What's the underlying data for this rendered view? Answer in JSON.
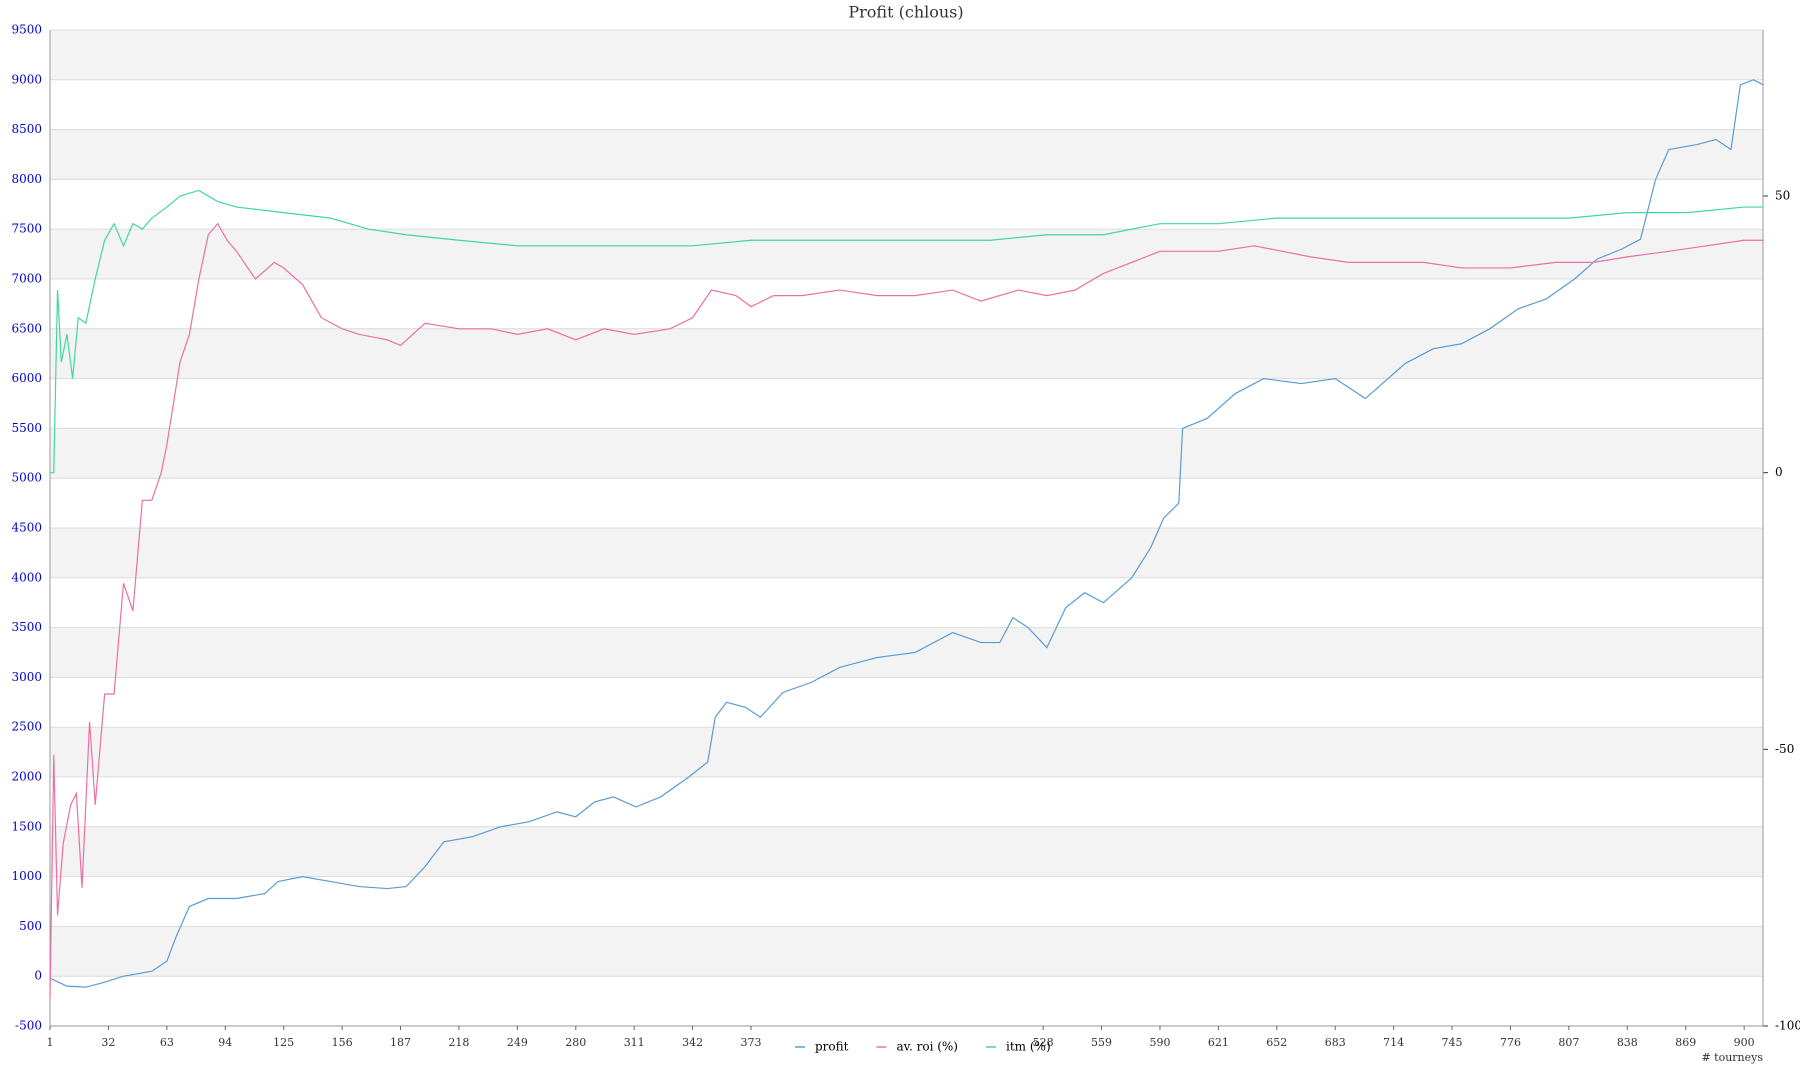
{
  "chart_data": {
    "type": "line",
    "title": "Profit  (chlous)",
    "x_label": "# tourneys",
    "xlim": [
      1,
      910
    ],
    "xticks": [
      1,
      32,
      63,
      94,
      125,
      156,
      187,
      218,
      249,
      280,
      311,
      342,
      373,
      528,
      559,
      590,
      621,
      652,
      683,
      714,
      745,
      776,
      807,
      838,
      869,
      900
    ],
    "ylim": [
      -500,
      9500
    ],
    "yticks": [
      -500,
      0,
      500,
      1000,
      1500,
      2000,
      2500,
      3000,
      3500,
      4000,
      4500,
      5000,
      5500,
      6000,
      6500,
      7000,
      7500,
      8000,
      8500,
      9000,
      9500
    ],
    "y2lim": [
      -100,
      80
    ],
    "y2ticks": [
      -100,
      -50,
      0,
      50
    ],
    "grid": true,
    "series": [
      {
        "name": "profit",
        "color": "#5b9bd5",
        "x": [
          1,
          10,
          20,
          30,
          40,
          55,
          63,
          68,
          75,
          85,
          100,
          115,
          122,
          135,
          150,
          165,
          180,
          190,
          200,
          210,
          225,
          240,
          255,
          270,
          280,
          290,
          300,
          312,
          325,
          340,
          350,
          354,
          360,
          370,
          378,
          390,
          405,
          420,
          440,
          460,
          480,
          495,
          505,
          512,
          520,
          530,
          540,
          550,
          560,
          575,
          585,
          592,
          600,
          602,
          615,
          630,
          645,
          665,
          683,
          699,
          720,
          735,
          750,
          765,
          780,
          795,
          810,
          822,
          835,
          845,
          853,
          860,
          875,
          885,
          893,
          898,
          905,
          910
        ],
        "values": [
          -20,
          -100,
          -110,
          -60,
          0,
          50,
          150,
          400,
          700,
          780,
          780,
          830,
          950,
          1000,
          950,
          900,
          880,
          900,
          1100,
          1350,
          1400,
          1500,
          1550,
          1650,
          1600,
          1750,
          1800,
          1700,
          1800,
          2000,
          2150,
          2600,
          2750,
          2700,
          2600,
          2850,
          2950,
          3100,
          3200,
          3250,
          3450,
          3350,
          3350,
          3600,
          3500,
          3300,
          3700,
          3850,
          3750,
          4000,
          4300,
          4600,
          4750,
          5500,
          5600,
          5850,
          6000,
          5950,
          6000,
          5800,
          6150,
          6300,
          6350,
          6500,
          6700,
          6800,
          7000,
          7200,
          7300,
          7400,
          8000,
          8300,
          8350,
          8400,
          8300,
          8950,
          9000,
          8950
        ]
      },
      {
        "name": "av. roi (%)",
        "color": "#ec6fa3",
        "axis": "y2",
        "x": [
          1,
          3,
          5,
          8,
          12,
          15,
          18,
          22,
          25,
          30,
          35,
          40,
          45,
          50,
          55,
          60,
          63,
          70,
          75,
          80,
          85,
          90,
          95,
          100,
          110,
          120,
          125,
          135,
          145,
          156,
          165,
          180,
          187,
          200,
          218,
          235,
          249,
          265,
          280,
          295,
          311,
          330,
          342,
          352,
          365,
          373,
          385,
          400,
          420,
          440,
          460,
          480,
          495,
          515,
          530,
          545,
          560,
          575,
          590,
          605,
          621,
          640,
          655,
          670,
          690,
          714,
          730,
          750,
          776,
          800,
          820,
          838,
          860,
          880,
          900,
          910
        ],
        "values": [
          -95,
          -51,
          -80,
          -67,
          -60,
          -58,
          -75,
          -45,
          -60,
          -40,
          -40,
          -20,
          -25,
          -5,
          -5,
          0,
          5,
          20,
          25,
          35,
          43,
          45,
          42,
          40,
          35,
          38,
          37,
          34,
          28,
          26,
          25,
          24,
          23,
          27,
          26,
          26,
          25,
          26,
          24,
          26,
          25,
          26,
          28,
          33,
          32,
          30,
          32,
          32,
          33,
          32,
          32,
          33,
          31,
          33,
          32,
          33,
          36,
          38,
          40,
          40,
          40,
          41,
          40,
          39,
          38,
          38,
          38,
          37,
          37,
          38,
          38,
          39,
          40,
          41,
          42,
          42
        ]
      },
      {
        "name": "itm (%)",
        "color": "#40d89c",
        "axis": "y2",
        "x": [
          1,
          3,
          5,
          7,
          10,
          13,
          16,
          20,
          25,
          30,
          35,
          40,
          45,
          50,
          55,
          63,
          70,
          80,
          90,
          100,
          125,
          150,
          170,
          190,
          218,
          249,
          280,
          311,
          342,
          373,
          400,
          430,
          460,
          500,
          530,
          560,
          590,
          621,
          652,
          683,
          714,
          745,
          776,
          807,
          838,
          870,
          900,
          910
        ],
        "values": [
          0,
          0,
          33,
          20,
          25,
          17,
          28,
          27,
          35,
          42,
          45,
          41,
          45,
          44,
          46,
          48,
          50,
          51,
          49,
          48,
          47,
          46,
          44,
          43,
          42,
          41,
          41,
          41,
          41,
          42,
          42,
          42,
          42,
          42,
          43,
          43,
          45,
          45,
          46,
          46,
          46,
          46,
          46,
          46,
          47,
          47,
          48,
          48
        ]
      }
    ]
  }
}
